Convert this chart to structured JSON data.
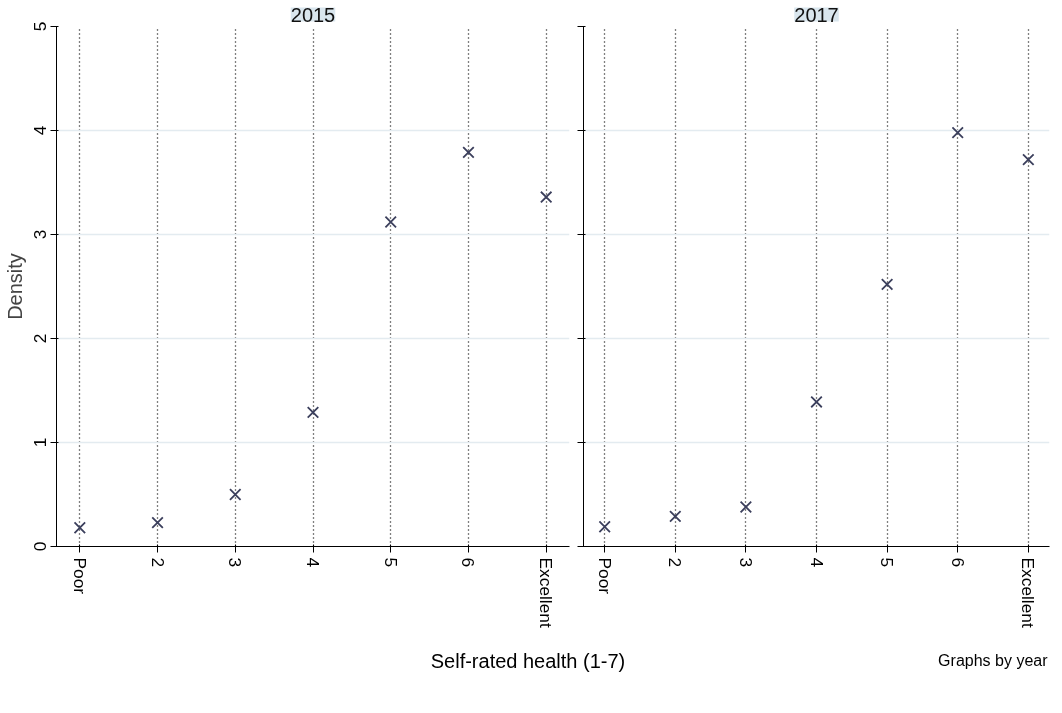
{
  "chart_data": [
    {
      "type": "scatter",
      "title": "2015",
      "ylabel": "Density",
      "xlabel": "Self-rated health (1-7)",
      "categories": [
        "Poor",
        "2",
        "3",
        "4",
        "5",
        "6",
        "Excellent"
      ],
      "series": [
        {
          "color": "#3b3f5c",
          "values": [
            0.18,
            0.23,
            0.5,
            1.29,
            3.12,
            3.79,
            3.36
          ]
        }
      ],
      "ylim": [
        0,
        5
      ],
      "yticks": [
        0,
        1,
        2,
        3,
        4,
        5
      ],
      "grid": true,
      "marker": "cross"
    },
    {
      "type": "scatter",
      "title": "2017",
      "categories": [
        "Poor",
        "2",
        "3",
        "4",
        "5",
        "6",
        "Excellent"
      ],
      "series": [
        {
          "color": "#3b3f5c",
          "values": [
            0.19,
            0.29,
            0.38,
            1.39,
            2.52,
            3.98,
            3.72
          ]
        }
      ],
      "ylim": [
        0,
        5
      ],
      "yticks": [
        0,
        1,
        2,
        3,
        4,
        5
      ],
      "grid": true,
      "marker": "cross",
      "tick_labels": "x",
      "annotations": [
        "Graphs by year"
      ]
    }
  ]
}
